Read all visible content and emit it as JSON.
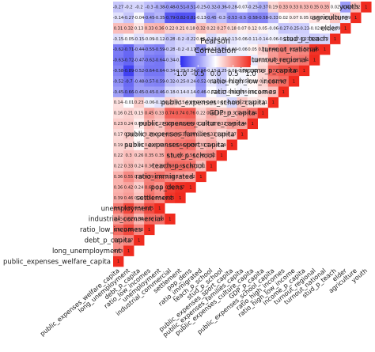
{
  "chart_data": {
    "type": "heatmap",
    "variables": [
      "public_expenses_welfare_capita",
      "long_unemployment",
      "debt_p_capita",
      "ratio_low_incomes",
      "unemployment",
      "industrial_commercial",
      "settlement",
      "pop_dens",
      "ratio_immigrated",
      "teach_p_school",
      "stud_p_school",
      "public_expenses_sport_capita",
      "public_expenses_families_capita",
      "public_expenses_culture_capita",
      "GDP_p_capita",
      "public_expenses_school_capita",
      "ratio_high_incomes",
      "ratio_high_low_income",
      "income_p_capita",
      "turnout_regional",
      "turnout_national",
      "stud_p_teach",
      "elder",
      "agriculture",
      "youth"
    ],
    "rows_top_to_bottom": [
      "youth",
      "agriculture",
      "elder",
      "stud_p_teach",
      "turnout_national",
      "turnout_regional",
      "income_p_capita",
      "ratio_high_low_income",
      "ratio_high_incomes",
      "public_expenses_school_capita",
      "GDP_p_capita",
      "public_expenses_culture_capita",
      "public_expenses_families_capita",
      "public_expenses_sport_capita",
      "stud_p_school",
      "teach_p_school",
      "ratio_immigrated",
      "pop_dens",
      "settlement",
      "unemployment",
      "industrial_commercial",
      "ratio_low_incomes",
      "debt_p_capita",
      "long_unemployment",
      "public_expenses_welfare_capita"
    ],
    "matrix_lower_triangle": [
      [],
      [
        0.53
      ],
      [
        0.51,
        0.57
      ],
      [
        0.69,
        0.86,
        0.56
      ],
      [
        0.62,
        0.87,
        0.58,
        0.85
      ],
      [
        0.45,
        0.62,
        0.34,
        0.69,
        0.68
      ],
      [
        0.39,
        0.46,
        0.29,
        0.66,
        0.54,
        0.95
      ],
      [
        0.36,
        0.42,
        0.24,
        0.62,
        0.5,
        0.91,
        0.97
      ],
      [
        0.36,
        0.55,
        0.39,
        0.59,
        0.66,
        0.55,
        0.47,
        0.42
      ],
      [
        0.22,
        0.33,
        0.24,
        0.36,
        0.39,
        0.68,
        0.69,
        0.67,
        0.31
      ],
      [
        0.22,
        0.3,
        0.26,
        0.35,
        0.35,
        0.6,
        0.6,
        0.56,
        0.45,
        0.52
      ],
      [
        0.19,
        0.2,
        0.05,
        0.32,
        0.34,
        0.62,
        0.64,
        0.68,
        0.33,
        0.41,
        0.19
      ],
      [
        0.17,
        0.24,
        0.01,
        0.29,
        0.28,
        0.51,
        0.53,
        0.56,
        0.29,
        0.33,
        0.18,
        0.27
      ],
      [
        0.23,
        0.24,
        0.09,
        0.36,
        0.27,
        0.56,
        0.61,
        0.64,
        0.28,
        0.35,
        0.32,
        0.46,
        0.44
      ],
      [
        0.16,
        0.21,
        0.15,
        0.45,
        0.33,
        0.74,
        0.74,
        0.76,
        0.22,
        0.41,
        0.28,
        0.3,
        0.46,
        0.64
      ],
      [
        0.14,
        -0.01,
        0.23,
        -0.06,
        -0.13,
        0.22,
        0.15,
        0.09,
        0.09,
        0.08,
        0.06,
        -0.19,
        0.25,
        0.12,
        0.11
      ],
      [
        -0.45,
        -0.66,
        -0.45,
        -0.45,
        -0.46,
        -0.18,
        -0.14,
        -0.14,
        -0.46,
        -0.02,
        -0.17,
        -0.01,
        -0.05,
        0.01,
        0.15,
        0.3
      ],
      [
        -0.52,
        -0.7,
        -0.48,
        -0.57,
        -0.59,
        -0.32,
        -0.25,
        -0.24,
        -0.52,
        -0.12,
        -0.24,
        -0.02,
        -0.05,
        0.03,
        0.2,
        0.62,
        0.7
      ],
      [
        -0.58,
        -0.89,
        -0.52,
        -0.64,
        -0.64,
        -0.34,
        -0.25,
        -0.24,
        -0.56,
        -0.15,
        -0.25,
        -0.06,
        -0.04,
        -0.02,
        0.2,
        0.72,
        0.79,
        0.85
      ],
      [
        -0.63,
        -0.72,
        -0.47,
        -0.62,
        -0.64,
        -0.34,
        -0.25,
        -0.26,
        -0.5,
        -0.2,
        -0.27,
        -0.1,
        -0.13,
        -0.11,
        0.15,
        0.48,
        0.61,
        0.59,
        0.64
      ],
      [
        -0.62,
        -0.71,
        -0.44,
        -0.55,
        -0.59,
        -0.28,
        -0.2,
        -0.17,
        -0.49,
        -0.12,
        -0.26,
        -0.09,
        -0.06,
        0.05,
        0.21,
        0.46,
        0.6,
        0.54,
        0.57,
        0.96
      ],
      [
        -0.15,
        -0.05,
        -0.15,
        -0.09,
        -0.12,
        -0.28,
        -0.2,
        -0.22,
        0.05,
        -0.18,
        -0.08,
        -0.13,
        -0.06,
        -0.11,
        -0.14,
        -0.06,
        -0.13,
        -0.17,
        -0.21,
        -0.25,
        -0.2
      ],
      [
        0.31,
        0.32,
        0.13,
        0.33,
        0.36,
        0.22,
        0.21,
        0.18,
        0.32,
        0.22,
        0.27,
        0.18,
        0.07,
        0.12,
        0.05,
        -0.06,
        -0.27,
        -0.25,
        -0.23,
        -0.02,
        0.02,
        -0.09
      ],
      [
        -0.14,
        -0.27,
        -0.04,
        -0.45,
        -0.35,
        -0.79,
        -0.82,
        -0.81,
        -0.13,
        -0.45,
        -0.3,
        -0.53,
        -0.5,
        -0.58,
        -0.58,
        -0.33,
        0.02,
        0.07,
        0.05,
        0.14,
        0.09,
        0.28,
        -0.09
      ],
      [
        -0.27,
        -0.2,
        -0.2,
        -0.3,
        -0.38,
        -0.48,
        -0.51,
        -0.51,
        -0.25,
        -0.32,
        -0.36,
        -0.28,
        -0.07,
        -0.25,
        -0.37,
        0.19,
        0.33,
        0.33,
        0.33,
        0.35,
        0.35,
        0.02,
        -0.47,
        0.32
      ]
    ],
    "diagonal": 1,
    "legend": {
      "title": "Pearson Correlation",
      "ticks": [
        "-1.0",
        "-0.5",
        "0.0",
        "0.5",
        "1.0"
      ],
      "min": -1,
      "max": 1,
      "low_color": "#2b2bf0",
      "mid_color": "#ffffff",
      "high_color": "#f02b1f"
    }
  }
}
